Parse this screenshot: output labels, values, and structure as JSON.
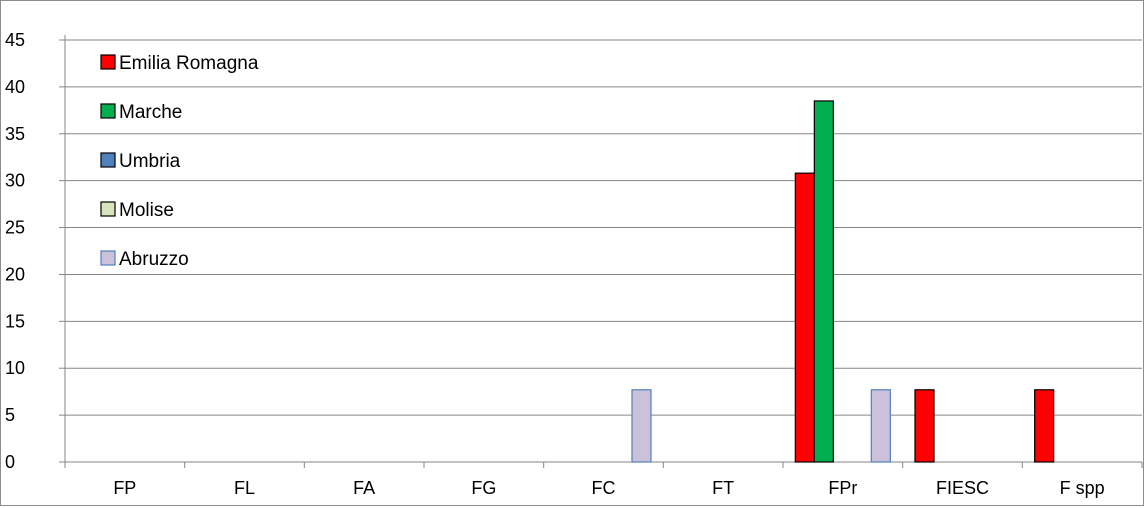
{
  "chart_data": {
    "type": "bar",
    "categories": [
      "FP",
      "FL",
      "FA",
      "FG",
      "FC",
      "FT",
      "FPr",
      "FIESC",
      "F spp"
    ],
    "series": [
      {
        "name": "Emilia Romagna",
        "color": "#ff0000",
        "values": [
          0,
          0,
          0,
          0,
          0,
          0,
          30.8,
          7.7,
          7.7
        ]
      },
      {
        "name": "Marche",
        "color": "#00b050",
        "values": [
          0,
          0,
          0,
          0,
          0,
          0,
          38.5,
          0,
          0
        ]
      },
      {
        "name": "Umbria",
        "color": "#4f81bd",
        "values": [
          0,
          0,
          0,
          0,
          0,
          0,
          0,
          0,
          0
        ]
      },
      {
        "name": "Molise",
        "color": "#d7e4bd",
        "values": [
          0,
          0,
          0,
          0,
          0,
          0,
          0,
          0,
          0
        ]
      },
      {
        "name": "Abruzzo",
        "color": "#ccc1da",
        "values": [
          0,
          0,
          0,
          0,
          7.7,
          0,
          7.7,
          0,
          0
        ]
      }
    ],
    "yticks": [
      "0",
      "5",
      "10",
      "15",
      "20",
      "25",
      "30",
      "35",
      "40",
      "45"
    ],
    "ylim": [
      0,
      45
    ],
    "grid": true,
    "legend_position": "top-left"
  }
}
